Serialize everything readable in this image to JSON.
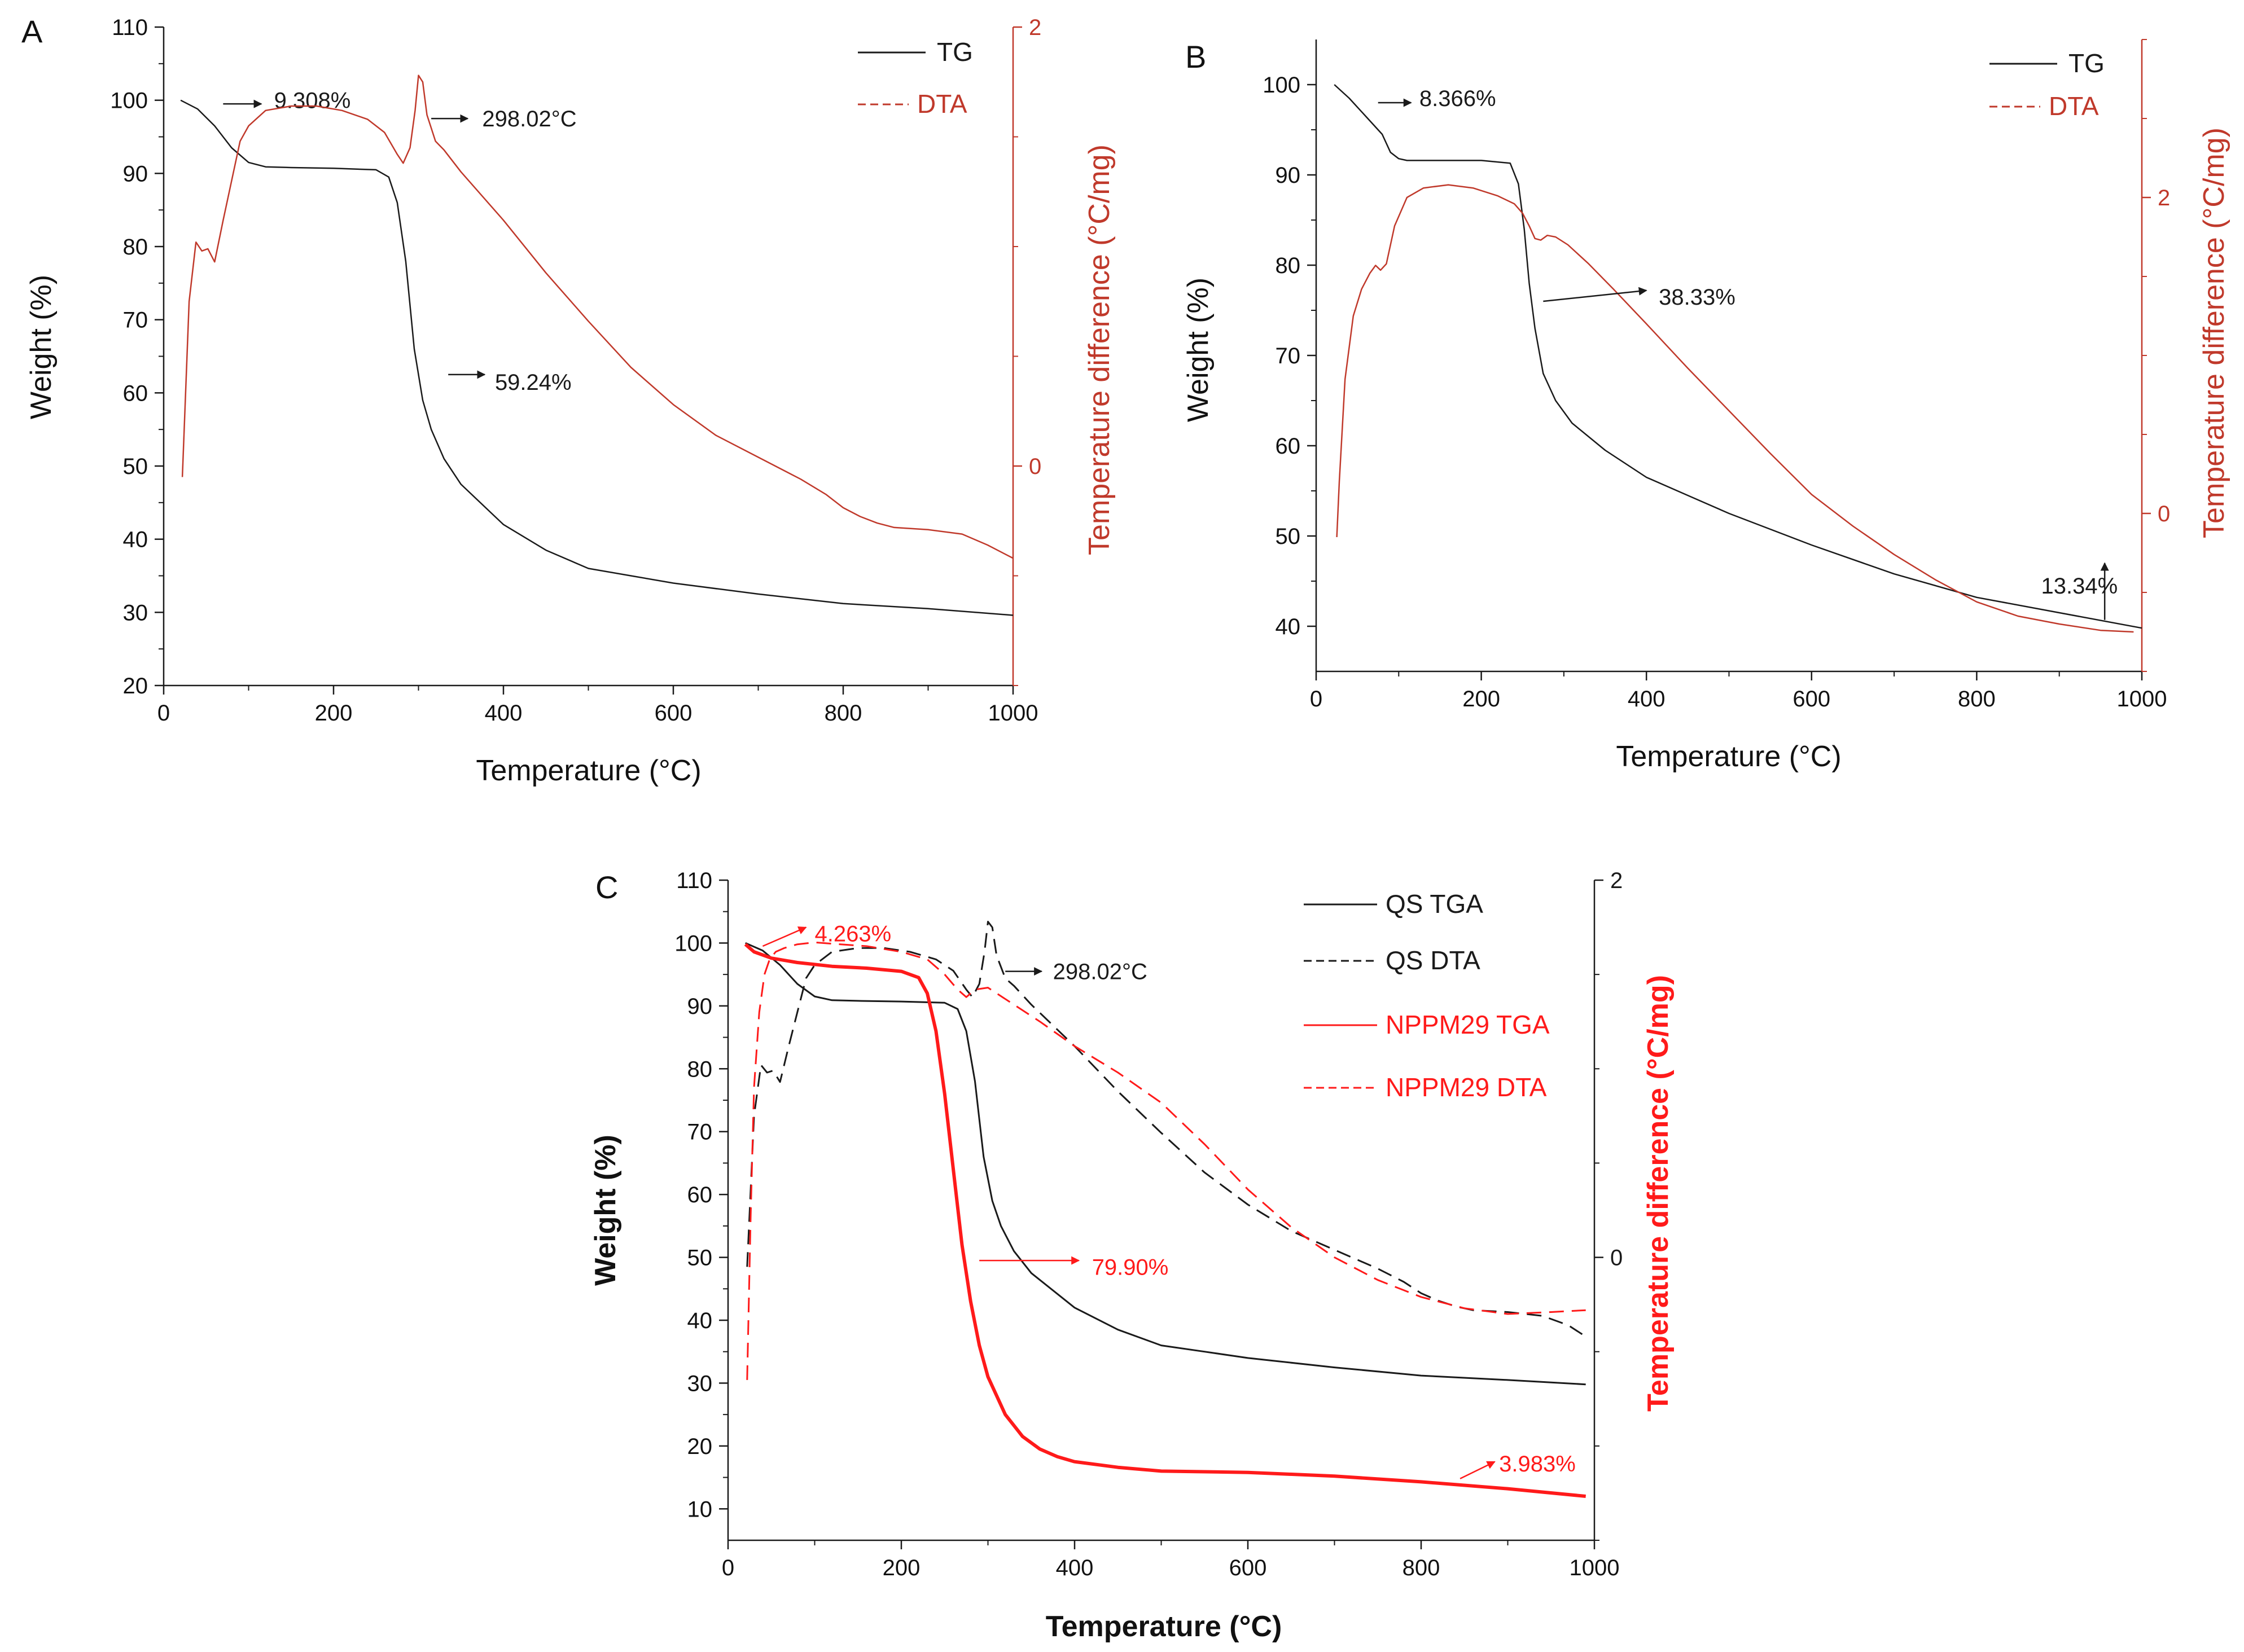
{
  "colors": {
    "black": "#1a1a1a",
    "red_a": "#c0392b",
    "red_c": "#ff1a1a",
    "axis_right": "#c0392b"
  },
  "chart_data": [
    {
      "type": "line",
      "panel_label": "A",
      "xlabel": "Temperature (°C)",
      "ylabel": "Weight (%)",
      "y2label": "Temperature difference (°C/mg)",
      "xlim": [
        0,
        1000
      ],
      "ylim": [
        20,
        110
      ],
      "y2lim": [
        -1.0,
        2.0
      ],
      "xticks": [
        "0",
        "200",
        "400",
        "600",
        "800",
        "1000"
      ],
      "yticks": [
        "20",
        "30",
        "40",
        "50",
        "60",
        "70",
        "80",
        "90",
        "100",
        "110"
      ],
      "y2ticks": [
        "0",
        "2"
      ],
      "legend": [
        {
          "label": "TG",
          "style": "solid",
          "color": "#1a1a1a"
        },
        {
          "label": "DTA",
          "style": "dashed",
          "color": "#c0392b"
        }
      ],
      "series": [
        {
          "name": "TG",
          "axis": "left",
          "color": "#1a1a1a",
          "style": "solid",
          "width": 2.5,
          "x": [
            20,
            40,
            60,
            80,
            100,
            120,
            150,
            200,
            250,
            265,
            275,
            285,
            295,
            305,
            315,
            330,
            350,
            400,
            450,
            500,
            550,
            600,
            700,
            800,
            900,
            1000
          ],
          "y": [
            100,
            98.8,
            96.5,
            93.5,
            91.5,
            90.9,
            90.8,
            90.7,
            90.5,
            89.5,
            86,
            78,
            66,
            59,
            55,
            51,
            47.5,
            42,
            38.5,
            36,
            35,
            34,
            32.5,
            31.2,
            30.5,
            29.6
          ]
        },
        {
          "name": "DTA",
          "axis": "right",
          "color": "#c0392b",
          "style": "solid",
          "width": 2.5,
          "x": [
            22,
            25,
            30,
            38,
            45,
            52,
            60,
            70,
            80,
            90,
            100,
            120,
            150,
            180,
            210,
            240,
            260,
            275,
            282,
            290,
            296,
            300,
            305,
            310,
            320,
            330,
            350,
            400,
            450,
            500,
            550,
            600,
            650,
            700,
            750,
            780,
            800,
            820,
            840,
            860,
            900,
            940,
            970,
            1000
          ],
          "y": [
            -0.05,
            0.25,
            0.75,
            1.02,
            0.98,
            0.99,
            0.93,
            1.12,
            1.3,
            1.48,
            1.55,
            1.62,
            1.64,
            1.64,
            1.62,
            1.58,
            1.52,
            1.42,
            1.38,
            1.45,
            1.62,
            1.78,
            1.75,
            1.6,
            1.48,
            1.44,
            1.34,
            1.12,
            0.88,
            0.66,
            0.45,
            0.28,
            0.14,
            0.04,
            -0.06,
            -0.13,
            -0.19,
            -0.23,
            -0.26,
            -0.28,
            -0.29,
            -0.31,
            -0.36,
            -0.42
          ]
        }
      ],
      "annotations": [
        {
          "text": "9.308%",
          "x": 130,
          "y": 100,
          "color": "#1a1a1a",
          "arrow_from": [
            70,
            99.5
          ],
          "arrow_to": [
            115,
            99.5
          ]
        },
        {
          "text": "298.02°C",
          "x": 375,
          "y": 97.5,
          "color": "#1a1a1a",
          "arrow_from": [
            315,
            97.5
          ],
          "arrow_to": [
            358,
            97.5
          ]
        },
        {
          "text": "59.24%",
          "x": 390,
          "y": 61.5,
          "color": "#1a1a1a",
          "arrow_from": [
            335,
            62.5
          ],
          "arrow_to": [
            378,
            62.5
          ]
        }
      ]
    },
    {
      "type": "line",
      "panel_label": "B",
      "xlabel": "Temperature (°C)",
      "ylabel": "Weight (%)",
      "y2label": "Temperature difference (°C/mg)",
      "xlim": [
        0,
        1000
      ],
      "ylim": [
        35,
        105
      ],
      "y2lim": [
        -1.0,
        3.0
      ],
      "xticks": [
        "0",
        "200",
        "400",
        "600",
        "800",
        "1000"
      ],
      "yticks": [
        "40",
        "50",
        "60",
        "70",
        "80",
        "90",
        "100"
      ],
      "y2ticks": [
        "0",
        "2"
      ],
      "legend": [
        {
          "label": "TG",
          "style": "solid",
          "color": "#1a1a1a"
        },
        {
          "label": "DTA",
          "style": "dashed",
          "color": "#c0392b"
        }
      ],
      "series": [
        {
          "name": "TG",
          "axis": "left",
          "color": "#1a1a1a",
          "style": "solid",
          "width": 2.5,
          "x": [
            22,
            40,
            60,
            80,
            90,
            100,
            110,
            150,
            200,
            235,
            245,
            252,
            258,
            265,
            275,
            290,
            310,
            350,
            400,
            450,
            500,
            600,
            700,
            800,
            900,
            1000
          ],
          "y": [
            100,
            98.5,
            96.5,
            94.5,
            92.5,
            91.8,
            91.6,
            91.6,
            91.6,
            91.3,
            89,
            84,
            78,
            73,
            68,
            65,
            62.5,
            59.5,
            56.5,
            54.5,
            52.5,
            49,
            45.8,
            43.2,
            41.5,
            39.8
          ]
        },
        {
          "name": "DTA",
          "axis": "right",
          "color": "#c0392b",
          "style": "solid",
          "width": 2.5,
          "x": [
            25,
            28,
            35,
            45,
            55,
            65,
            72,
            78,
            85,
            95,
            110,
            130,
            160,
            190,
            220,
            240,
            250,
            258,
            265,
            272,
            280,
            290,
            305,
            330,
            360,
            400,
            450,
            500,
            550,
            600,
            650,
            700,
            750,
            800,
            850,
            900,
            950,
            990
          ],
          "y": [
            -0.15,
            0.2,
            0.85,
            1.25,
            1.42,
            1.52,
            1.57,
            1.54,
            1.58,
            1.82,
            2.0,
            2.06,
            2.08,
            2.06,
            2.01,
            1.96,
            1.9,
            1.82,
            1.74,
            1.73,
            1.76,
            1.75,
            1.7,
            1.58,
            1.42,
            1.2,
            0.92,
            0.65,
            0.38,
            0.12,
            -0.08,
            -0.26,
            -0.42,
            -0.56,
            -0.65,
            -0.7,
            -0.74,
            -0.75
          ]
        }
      ],
      "annotations": [
        {
          "text": "8.366%",
          "x": 125,
          "y": 98.5,
          "color": "#1a1a1a",
          "arrow_from": [
            75,
            98
          ],
          "arrow_to": [
            115,
            98
          ]
        },
        {
          "text": "38.33%",
          "x": 415,
          "y": 76.5,
          "color": "#1a1a1a",
          "arrow_from": [
            275,
            76
          ],
          "arrow_to": [
            400,
            77.2
          ]
        },
        {
          "text": "13.34%",
          "x": 878,
          "y": 44.5,
          "color": "#1a1a1a",
          "arrow_from": [
            955,
            40.7
          ],
          "arrow_to": [
            955,
            47
          ]
        }
      ]
    },
    {
      "type": "line",
      "panel_label": "C",
      "xlabel": "Temperature (°C)",
      "ylabel": "Weight (%)",
      "y2label": "Temperature difference (°C/mg)",
      "xlim": [
        0,
        1000
      ],
      "ylim": [
        5,
        110
      ],
      "y2lim": [
        -1.5,
        2.0
      ],
      "xticks": [
        "0",
        "200",
        "400",
        "600",
        "800",
        "1000"
      ],
      "yticks": [
        "10",
        "20",
        "30",
        "40",
        "50",
        "60",
        "70",
        "80",
        "90",
        "100",
        "110"
      ],
      "y2ticks": [
        "0",
        "2"
      ],
      "legend": [
        {
          "label": "QS TGA",
          "style": "solid",
          "color": "#1a1a1a"
        },
        {
          "label": "QS DTA",
          "style": "dashed",
          "color": "#1a1a1a"
        },
        {
          "label": "NPPM29 TGA",
          "style": "solid",
          "color": "#ff1a1a"
        },
        {
          "label": "NPPM29 DTA",
          "style": "dashed",
          "color": "#ff1a1a"
        }
      ],
      "series": [
        {
          "name": "QS TGA",
          "axis": "left",
          "color": "#1a1a1a",
          "style": "solid",
          "width": 3,
          "x": [
            20,
            40,
            60,
            80,
            100,
            120,
            150,
            200,
            250,
            265,
            275,
            285,
            295,
            305,
            315,
            330,
            350,
            400,
            450,
            500,
            550,
            600,
            700,
            800,
            900,
            990
          ],
          "y": [
            100,
            98.8,
            96.5,
            93.5,
            91.5,
            90.9,
            90.8,
            90.7,
            90.5,
            89.5,
            86,
            78,
            66,
            59,
            55,
            51,
            47.5,
            42,
            38.5,
            36,
            35,
            34,
            32.5,
            31.2,
            30.5,
            29.8
          ]
        },
        {
          "name": "QS DTA",
          "axis": "right",
          "color": "#1a1a1a",
          "style": "dashed",
          "width": 3,
          "x": [
            22,
            25,
            30,
            38,
            45,
            52,
            60,
            70,
            80,
            90,
            100,
            120,
            150,
            180,
            210,
            240,
            260,
            275,
            282,
            290,
            296,
            300,
            305,
            310,
            320,
            330,
            350,
            400,
            450,
            500,
            550,
            600,
            650,
            700,
            750,
            780,
            800,
            820,
            840,
            860,
            900,
            940,
            970,
            990
          ],
          "y": [
            -0.05,
            0.25,
            0.75,
            1.02,
            0.98,
            0.99,
            0.93,
            1.12,
            1.3,
            1.48,
            1.55,
            1.62,
            1.64,
            1.64,
            1.62,
            1.58,
            1.52,
            1.42,
            1.38,
            1.45,
            1.62,
            1.78,
            1.75,
            1.6,
            1.48,
            1.44,
            1.34,
            1.12,
            0.88,
            0.66,
            0.45,
            0.28,
            0.14,
            0.04,
            -0.06,
            -0.13,
            -0.19,
            -0.23,
            -0.26,
            -0.28,
            -0.29,
            -0.31,
            -0.36,
            -0.42
          ]
        },
        {
          "name": "NPPM29 TGA",
          "axis": "left",
          "color": "#ff1a1a",
          "style": "solid",
          "width": 6,
          "x": [
            20,
            30,
            50,
            80,
            120,
            160,
            200,
            220,
            230,
            240,
            250,
            260,
            270,
            280,
            290,
            300,
            320,
            340,
            360,
            380,
            400,
            450,
            500,
            600,
            700,
            800,
            900,
            990
          ],
          "y": [
            99.8,
            98.6,
            97.6,
            96.9,
            96.3,
            96.0,
            95.5,
            94.5,
            92,
            86,
            76,
            64,
            52,
            43,
            36,
            31,
            25,
            21.5,
            19.5,
            18.3,
            17.5,
            16.6,
            16.0,
            15.8,
            15.2,
            14.3,
            13.2,
            12.0
          ]
        },
        {
          "name": "NPPM29 DTA",
          "axis": "right",
          "color": "#ff1a1a",
          "style": "dashed",
          "width": 3,
          "x": [
            22,
            26,
            30,
            36,
            42,
            48,
            55,
            65,
            80,
            100,
            130,
            160,
            200,
            230,
            250,
            265,
            275,
            285,
            300,
            330,
            360,
            400,
            450,
            500,
            550,
            600,
            650,
            700,
            750,
            800,
            850,
            900,
            950,
            990
          ],
          "y": [
            -0.65,
            0.2,
            0.9,
            1.3,
            1.5,
            1.58,
            1.62,
            1.64,
            1.66,
            1.67,
            1.66,
            1.65,
            1.62,
            1.58,
            1.5,
            1.42,
            1.38,
            1.42,
            1.43,
            1.34,
            1.25,
            1.12,
            0.98,
            0.82,
            0.6,
            0.36,
            0.16,
            0.0,
            -0.12,
            -0.21,
            -0.27,
            -0.3,
            -0.29,
            -0.28
          ]
        }
      ],
      "annotations": [
        {
          "text": "4.263%",
          "x": 100,
          "y": 101.5,
          "color": "#ff1a1a",
          "arrow_from": [
            40,
            99.5
          ],
          "arrow_to": [
            90,
            102.5
          ]
        },
        {
          "text": "298.02°C",
          "x": 375,
          "y": 95.5,
          "color": "#1a1a1a",
          "arrow_from": [
            320,
            95.5
          ],
          "arrow_to": [
            362,
            95.5
          ]
        },
        {
          "text": "79.90%",
          "x": 420,
          "y": 48.5,
          "color": "#ff1a1a",
          "arrow_from": [
            290,
            49.5
          ],
          "arrow_to": [
            405,
            49.5
          ]
        },
        {
          "text": "3.983%",
          "x": 890,
          "y": 17.2,
          "color": "#ff1a1a",
          "arrow_from": [
            845,
            14.8
          ],
          "arrow_to": [
            885,
            17.5
          ]
        }
      ]
    }
  ]
}
